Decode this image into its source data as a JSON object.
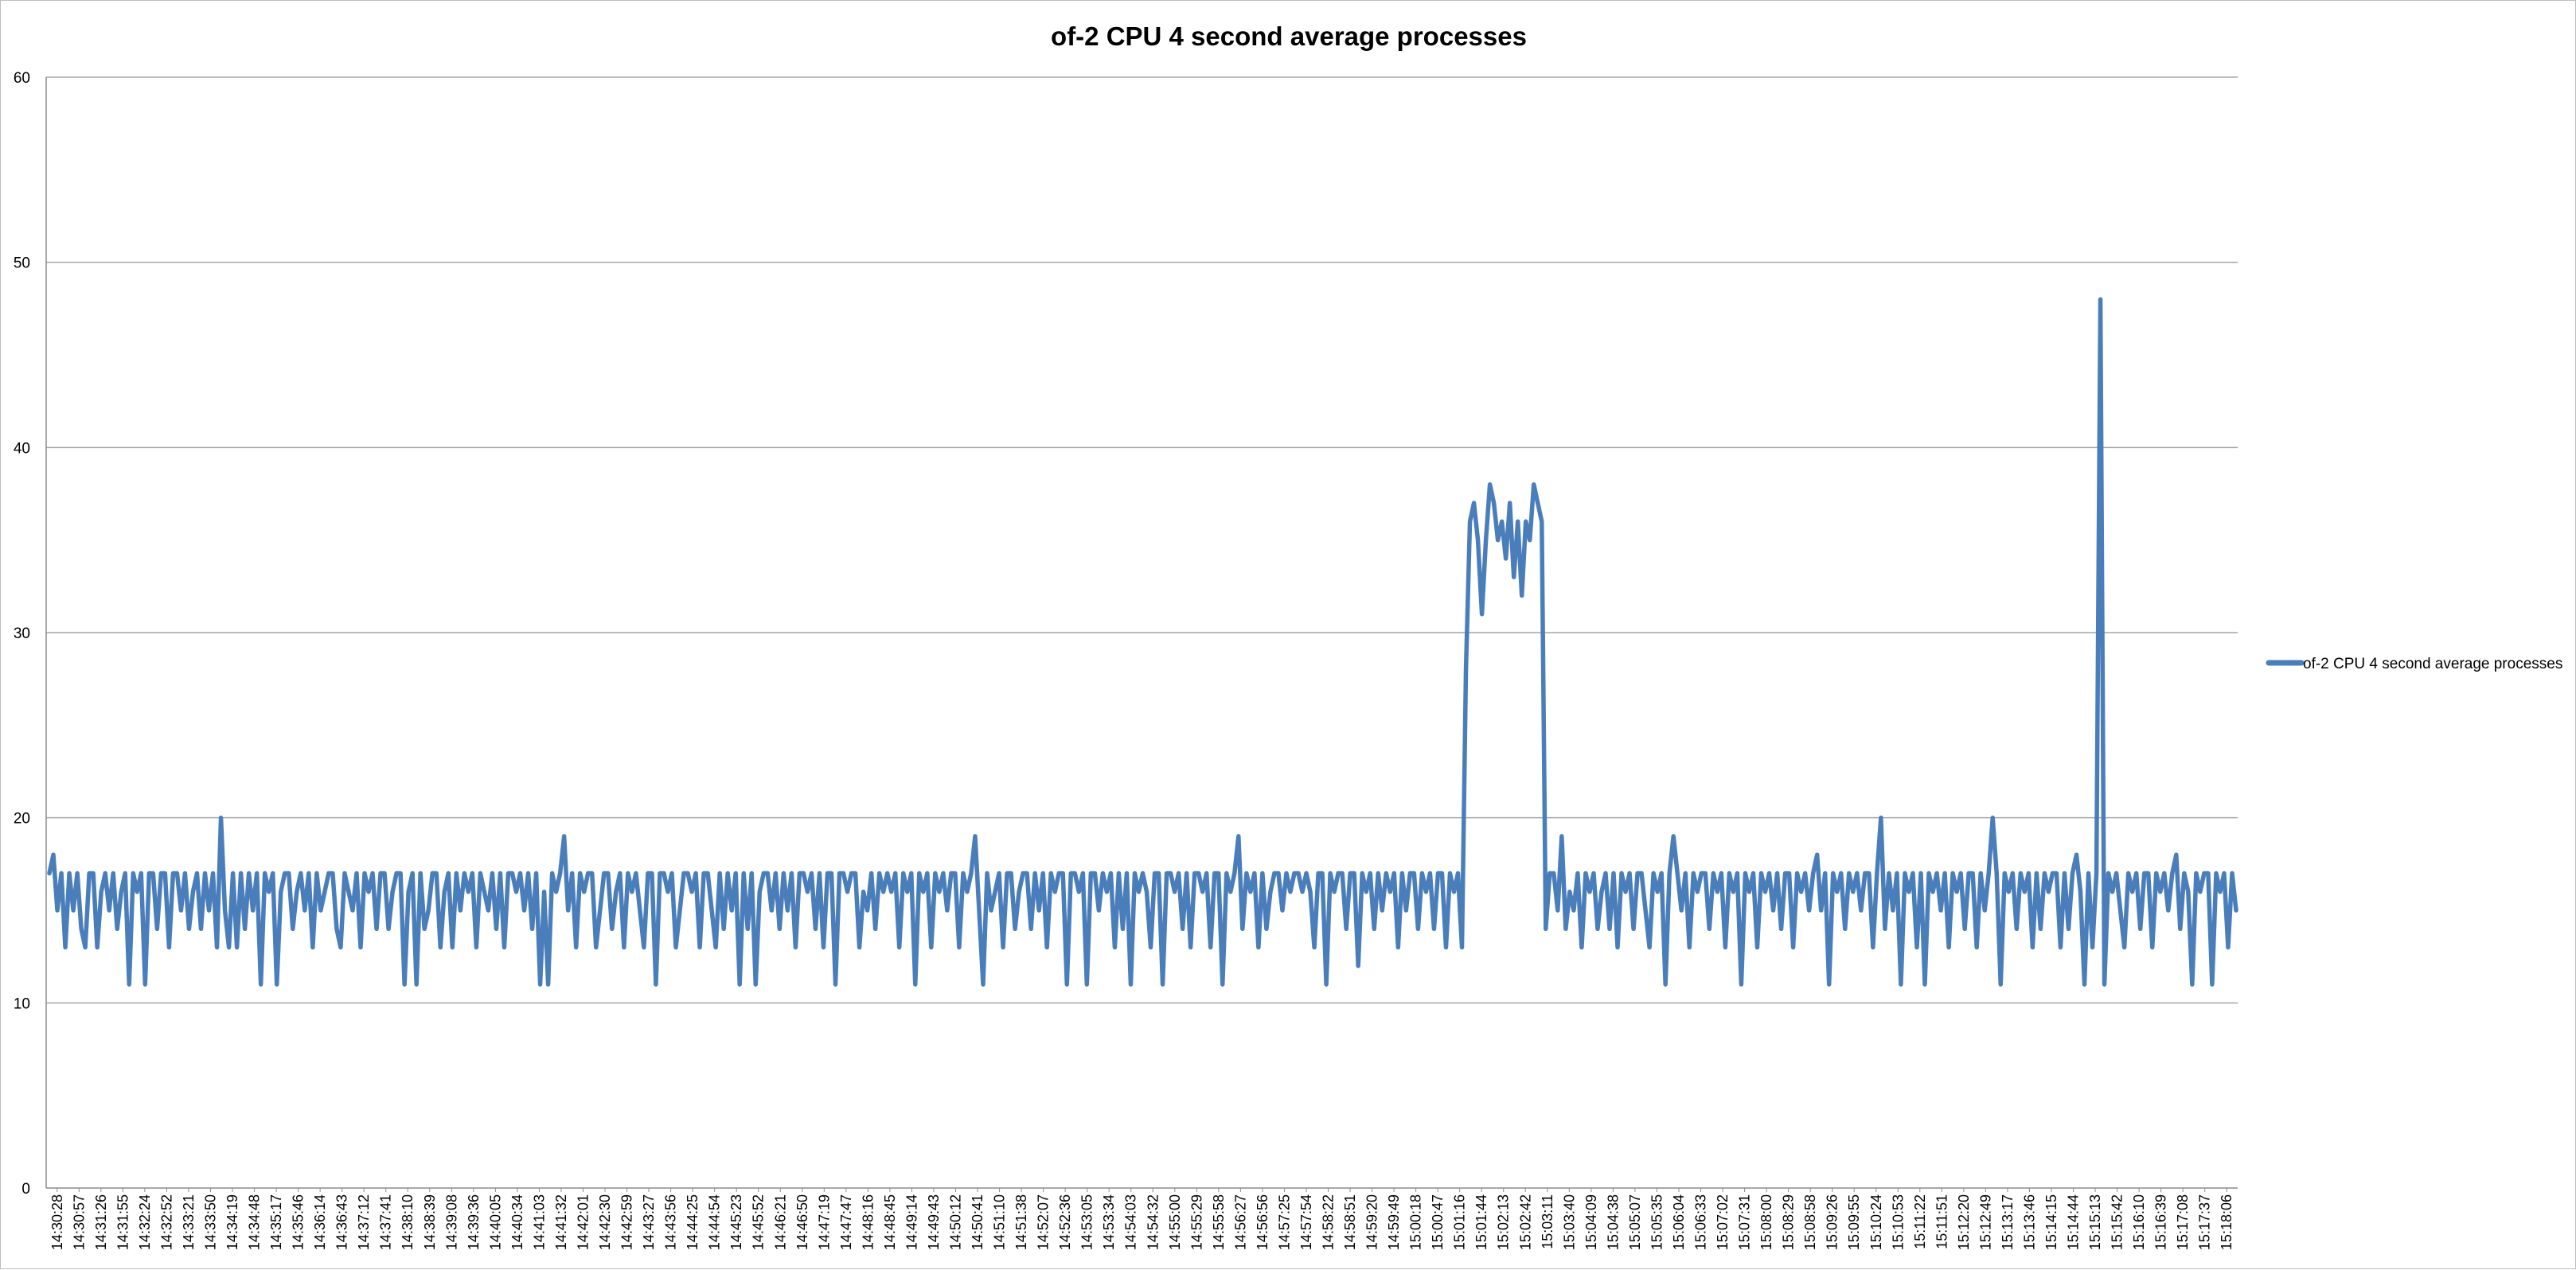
{
  "chart_data": {
    "type": "line",
    "title": "of-2 CPU 4 second average processes",
    "xlabel": "",
    "ylabel": "",
    "ylim": [
      0,
      60
    ],
    "yticks": [
      0,
      10,
      20,
      30,
      40,
      50,
      60
    ],
    "grid": true,
    "legend": "right",
    "x_tick_labels": [
      "14:30:28",
      "14:30:57",
      "14:31:26",
      "14:31:55",
      "14:32:24",
      "14:32:52",
      "14:33:21",
      "14:33:50",
      "14:34:19",
      "14:34:48",
      "14:35:17",
      "14:35:46",
      "14:36:14",
      "14:36:43",
      "14:37:12",
      "14:37:41",
      "14:38:10",
      "14:38:39",
      "14:39:08",
      "14:39:36",
      "14:40:05",
      "14:40:34",
      "14:41:03",
      "14:41:32",
      "14:42:01",
      "14:42:30",
      "14:42:59",
      "14:43:27",
      "14:43:56",
      "14:44:25",
      "14:44:54",
      "14:45:23",
      "14:45:52",
      "14:46:21",
      "14:46:50",
      "14:47:19",
      "14:47:47",
      "14:48:16",
      "14:48:45",
      "14:49:14",
      "14:49:43",
      "14:50:12",
      "14:50:41",
      "14:51:10",
      "14:51:38",
      "14:52:07",
      "14:52:36",
      "14:53:05",
      "14:53:34",
      "14:54:03",
      "14:54:32",
      "14:55:00",
      "14:55:29",
      "14:55:58",
      "14:56:27",
      "14:56:56",
      "14:57:25",
      "14:57:54",
      "14:58:22",
      "14:58:51",
      "14:59:20",
      "14:59:49",
      "15:00:18",
      "15:00:47",
      "15:01:16",
      "15:01:44",
      "15:02:13",
      "15:02:42",
      "15:03:11",
      "15:03:40",
      "15:04:09",
      "15:04:38",
      "15:05:07",
      "15:05:35",
      "15:06:04",
      "15:06:33",
      "15:07:02",
      "15:07:31",
      "15:08:00",
      "15:08:29",
      "15:08:58",
      "15:09:26",
      "15:09:55",
      "15:10:24",
      "15:10:53",
      "15:11:22",
      "15:11:51",
      "15:12:20",
      "15:12:49",
      "15:13:17",
      "15:13:46",
      "15:14:15",
      "15:14:44",
      "15:15:13",
      "15:15:42",
      "15:16:10",
      "15:16:39",
      "15:17:08",
      "15:17:37",
      "15:18:06"
    ],
    "series": [
      {
        "name": "of-2 CPU 4 second average processes",
        "color": "#4a7ebb",
        "values": [
          17,
          18,
          15,
          17,
          13,
          17,
          15,
          17,
          14,
          13,
          17,
          17,
          13,
          16,
          17,
          15,
          17,
          14,
          16,
          17,
          11,
          17,
          16,
          17,
          11,
          17,
          17,
          14,
          17,
          17,
          13,
          17,
          17,
          15,
          17,
          14,
          16,
          17,
          14,
          17,
          15,
          17,
          13,
          20,
          15,
          13,
          17,
          13,
          17,
          14,
          17,
          15,
          17,
          11,
          17,
          16,
          17,
          11,
          16,
          17,
          17,
          14,
          16,
          17,
          15,
          17,
          13,
          17,
          15,
          16,
          17,
          17,
          14,
          13,
          17,
          16,
          15,
          17,
          13,
          17,
          16,
          17,
          14,
          17,
          17,
          14,
          16,
          17,
          17,
          11,
          16,
          17,
          11,
          17,
          14,
          15,
          17,
          17,
          13,
          16,
          17,
          13,
          17,
          15,
          17,
          16,
          17,
          13,
          17,
          16,
          15,
          17,
          14,
          17,
          13,
          17,
          17,
          16,
          17,
          15,
          17,
          14,
          17,
          11,
          16,
          11,
          17,
          16,
          17,
          19,
          15,
          17,
          13,
          17,
          16,
          17,
          17,
          13,
          15,
          17,
          17,
          14,
          16,
          17,
          13,
          17,
          16,
          17,
          15,
          13,
          17,
          17,
          11,
          17,
          17,
          16,
          17,
          13,
          15,
          17,
          17,
          16,
          17,
          13,
          17,
          17,
          15,
          13,
          17,
          14,
          17,
          15,
          17,
          11,
          17,
          14,
          17,
          11,
          16,
          17,
          17,
          15,
          17,
          14,
          17,
          15,
          17,
          13,
          17,
          17,
          16,
          17,
          14,
          17,
          13,
          17,
          17,
          11,
          17,
          17,
          16,
          17,
          17,
          13,
          16,
          15,
          17,
          14,
          17,
          16,
          17,
          16,
          17,
          13,
          17,
          16,
          17,
          11,
          17,
          16,
          17,
          13,
          17,
          16,
          17,
          15,
          17,
          17,
          13,
          17,
          16,
          17,
          19,
          15,
          11,
          17,
          15,
          16,
          17,
          13,
          17,
          17,
          14,
          16,
          17,
          17,
          14,
          17,
          15,
          17,
          13,
          17,
          16,
          17,
          17,
          11,
          17,
          17,
          16,
          17,
          11,
          17,
          17,
          15,
          17,
          16,
          17,
          13,
          17,
          14,
          17,
          11,
          17,
          16,
          17,
          16,
          13,
          17,
          17,
          11,
          17,
          17,
          16,
          17,
          14,
          17,
          13,
          17,
          17,
          16,
          17,
          13,
          17,
          17,
          11,
          17,
          16,
          17,
          19,
          14,
          17,
          16,
          17,
          13,
          17,
          14,
          16,
          17,
          17,
          15,
          17,
          16,
          17,
          17,
          16,
          17,
          16,
          13,
          17,
          17,
          11,
          17,
          16,
          17,
          17,
          14,
          17,
          17,
          12,
          17,
          16,
          17,
          14,
          17,
          15,
          17,
          16,
          17,
          13,
          17,
          15,
          17,
          17,
          14,
          17,
          16,
          17,
          14,
          17,
          17,
          13,
          17,
          16,
          17,
          13,
          28,
          36,
          37,
          35,
          31,
          35,
          38,
          37,
          35,
          36,
          34,
          37,
          33,
          36,
          32,
          36,
          35,
          38,
          37,
          36,
          14,
          17,
          17,
          15,
          19,
          14,
          16,
          15,
          17,
          13,
          17,
          16,
          17,
          14,
          16,
          17,
          14,
          17,
          13,
          17,
          16,
          17,
          14,
          17,
          17,
          15,
          13,
          17,
          16,
          17,
          11,
          17,
          19,
          17,
          15,
          17,
          13,
          17,
          16,
          17,
          17,
          14,
          17,
          16,
          17,
          13,
          17,
          16,
          17,
          11,
          17,
          16,
          17,
          13,
          17,
          16,
          17,
          15,
          17,
          14,
          17,
          17,
          13,
          17,
          16,
          17,
          15,
          17,
          18,
          15,
          17,
          11,
          17,
          16,
          17,
          14,
          17,
          16,
          17,
          15,
          17,
          17,
          13,
          17,
          20,
          14,
          17,
          15,
          17,
          11,
          17,
          16,
          17,
          13,
          17,
          11,
          17,
          16,
          17,
          15,
          17,
          13,
          17,
          16,
          17,
          14,
          17,
          17,
          13,
          17,
          15,
          17,
          20,
          17,
          11,
          17,
          16,
          17,
          14,
          17,
          16,
          17,
          13,
          17,
          14,
          17,
          16,
          17,
          17,
          13,
          17,
          14,
          17,
          18,
          16,
          11,
          17,
          13,
          17,
          48,
          11,
          17,
          16,
          17,
          15,
          13,
          17,
          16,
          17,
          14,
          17,
          17,
          13,
          17,
          16,
          17,
          15,
          17,
          18,
          14,
          17,
          16,
          11,
          17,
          16,
          17,
          17,
          11,
          17,
          16,
          17,
          13,
          17,
          15
        ]
      }
    ]
  }
}
